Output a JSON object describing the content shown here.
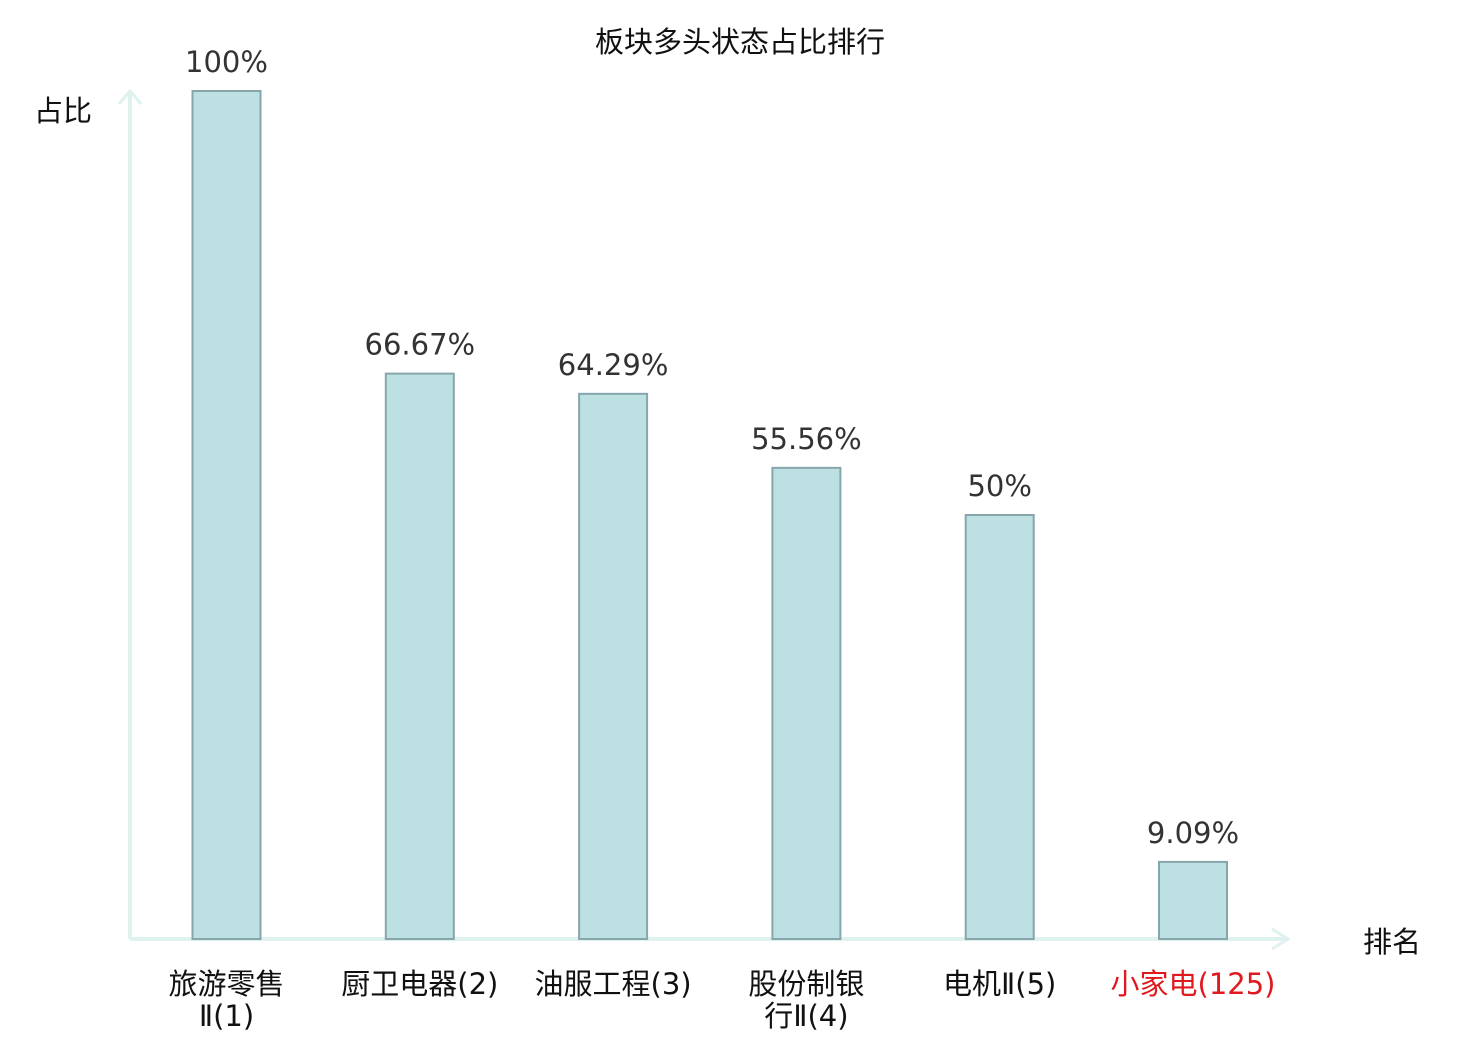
{
  "chart_data": {
    "type": "bar",
    "title": "板块多头状态占比排行",
    "xlabel": "排名",
    "ylabel": "占比",
    "ylim": [
      0,
      100
    ],
    "grid": false,
    "legend": "none",
    "categories": [
      [
        "旅游零售",
        "Ⅱ(1)"
      ],
      [
        "厨卫电器(2)"
      ],
      [
        "油服工程(3)"
      ],
      [
        "股份制银",
        "行Ⅱ(4)"
      ],
      [
        "电机Ⅱ(5)"
      ],
      [
        "小家电(125)"
      ]
    ],
    "highlight_index": 5,
    "values": [
      100,
      66.67,
      64.29,
      55.56,
      50,
      9.09
    ],
    "value_labels": [
      "100%",
      "66.67%",
      "64.29%",
      "55.56%",
      "50%",
      "9.09%"
    ]
  },
  "colors": {
    "bar_fill": "#bde0e3",
    "bar_stroke": "#86a6ab",
    "axis": "#dff2ef",
    "text": "#333333",
    "highlight": "#e0191e"
  }
}
